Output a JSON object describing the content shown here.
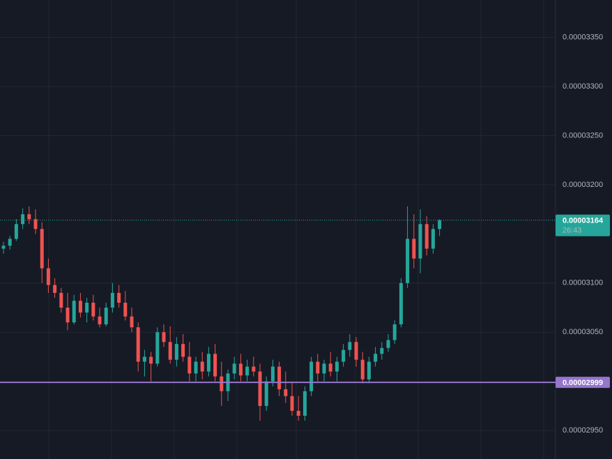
{
  "chart_data": {
    "type": "candlestick",
    "ylim": [
      2.921e-05,
      3.388e-05
    ],
    "yticks": [
      {
        "value": 3.35e-05,
        "label": "0.00003350"
      },
      {
        "value": 3.3e-05,
        "label": "0.00003300"
      },
      {
        "value": 3.25e-05,
        "label": "0.00003250"
      },
      {
        "value": 3.2e-05,
        "label": "0.00003200"
      },
      {
        "value": 3.1e-05,
        "label": "0.00003100"
      },
      {
        "value": 3.05e-05,
        "label": "0.00003050"
      },
      {
        "value": 2.95e-05,
        "label": "0.00002950"
      }
    ],
    "grid": true,
    "up_color": "#26a69a",
    "down_color": "#ef5350",
    "last_price": 3.164e-05,
    "last_price_color": "#26a69a",
    "countdown": "26:43",
    "alert_price": 2.999e-05,
    "alert_color": "#9575cd",
    "open": [
      3.135e-05,
      3.138e-05,
      3.145e-05,
      3.16e-05,
      3.17e-05,
      3.165e-05,
      3.155e-05,
      3.115e-05,
      3.098e-05,
      3.09e-05,
      3.075e-05,
      3.06e-05,
      3.082e-05,
      3.07e-05,
      3.08e-05,
      3.066e-05,
      3.058e-05,
      3.075e-05,
      3.09e-05,
      3.08e-05,
      3.066e-05,
      3.055e-05,
      3.02e-05,
      3.025e-05,
      3.018e-05,
      3.05e-05,
      3.04e-05,
      3.022e-05,
      3.038e-05,
      3.025e-05,
      3.008e-05,
      3.02e-05,
      3.01e-05,
      3.028e-05,
      3.005e-05,
      2.99e-05,
      3.008e-05,
      3.018e-05,
      3.006e-05,
      3.015e-05,
      3.01e-05,
      2.975e-05,
      3e-05,
      3.015e-05,
      2.992e-05,
      2.985e-05,
      2.97e-05,
      2.965e-05,
      2.99e-05,
      3.02e-05,
      3.008e-05,
      3.018e-05,
      3.01e-05,
      3.02e-05,
      3.032e-05,
      3.04e-05,
      3.022e-05,
      3.002e-05,
      3.02e-05,
      3.028e-05,
      3.034e-05,
      3.042e-05,
      3.058e-05,
      3.1e-05,
      3.145e-05,
      3.125e-05,
      3.16e-05,
      3.135e-05,
      3.155e-05
    ],
    "high": [
      3.142e-05,
      3.148e-05,
      3.165e-05,
      3.176e-05,
      3.178e-05,
      3.175e-05,
      3.162e-05,
      3.125e-05,
      3.105e-05,
      3.095e-05,
      3.09e-05,
      3.088e-05,
      3.09e-05,
      3.085e-05,
      3.088e-05,
      3.075e-05,
      3.08e-05,
      3.1e-05,
      3.098e-05,
      3.092e-05,
      3.075e-05,
      3.06e-05,
      3.032e-05,
      3.03e-05,
      3.055e-05,
      3.058e-05,
      3.056e-05,
      3.045e-05,
      3.048e-05,
      3.04e-05,
      3.025e-05,
      3.03e-05,
      3.035e-05,
      3.038e-05,
      3.02e-05,
      3.012e-05,
      3.025e-05,
      3.028e-05,
      3.022e-05,
      3.025e-05,
      3.018e-05,
      3.005e-05,
      3.022e-05,
      3.02e-05,
      3.01e-05,
      3e-05,
      2.985e-05,
      2.995e-05,
      3.025e-05,
      3.028e-05,
      3.022e-05,
      3.03e-05,
      3.025e-05,
      3.038e-05,
      3.048e-05,
      3.045e-05,
      3.03e-05,
      3.025e-05,
      3.035e-05,
      3.04e-05,
      3.048e-05,
      3.062e-05,
      3.105e-05,
      3.178e-05,
      3.17e-05,
      3.175e-05,
      3.168e-05,
      3.16e-05,
      3.165e-05
    ],
    "low": [
      3.13e-05,
      3.134e-05,
      3.143e-05,
      3.155e-05,
      3.16e-05,
      3.15e-05,
      3.1e-05,
      3.09e-05,
      3.085e-05,
      3.07e-05,
      3.052e-05,
      3.058e-05,
      3.065e-05,
      3.06e-05,
      3.062e-05,
      3.055e-05,
      3.056e-05,
      3.07e-05,
      3.075e-05,
      3.062e-05,
      3.05e-05,
      3.01e-05,
      3.005e-05,
      3e-05,
      3.015e-05,
      3.035e-05,
      3.018e-05,
      3.015e-05,
      3.02e-05,
      3e-05,
      3e-05,
      3.002e-05,
      3.005e-05,
      3e-05,
      2.975e-05,
      2.98e-05,
      3.002e-05,
      3e-05,
      3e-05,
      3.005e-05,
      2.96e-05,
      2.97e-05,
      2.995e-05,
      2.985e-05,
      2.978e-05,
      2.965e-05,
      2.96e-05,
      2.96e-05,
      2.985e-05,
      3e-05,
      3e-05,
      3.005e-05,
      3e-05,
      3.015e-05,
      3.025e-05,
      3.015e-05,
      2.998e-05,
      2.998e-05,
      3.015e-05,
      3.022e-05,
      3.03e-05,
      3.038e-05,
      3.055e-05,
      3.095e-05,
      3.115e-05,
      3.11e-05,
      3.128e-05,
      3.13e-05,
      3.148e-05
    ],
    "close": [
      3.138e-05,
      3.145e-05,
      3.16e-05,
      3.17e-05,
      3.165e-05,
      3.155e-05,
      3.115e-05,
      3.098e-05,
      3.09e-05,
      3.075e-05,
      3.06e-05,
      3.082e-05,
      3.07e-05,
      3.08e-05,
      3.066e-05,
      3.058e-05,
      3.075e-05,
      3.09e-05,
      3.08e-05,
      3.066e-05,
      3.055e-05,
      3.02e-05,
      3.025e-05,
      3.018e-05,
      3.05e-05,
      3.04e-05,
      3.022e-05,
      3.038e-05,
      3.025e-05,
      3.008e-05,
      3.02e-05,
      3.01e-05,
      3.028e-05,
      3.005e-05,
      2.99e-05,
      3.008e-05,
      3.018e-05,
      3.006e-05,
      3.015e-05,
      3.01e-05,
      2.975e-05,
      3e-05,
      3.015e-05,
      2.992e-05,
      2.985e-05,
      2.97e-05,
      2.965e-05,
      2.99e-05,
      3.02e-05,
      3.008e-05,
      3.018e-05,
      3.01e-05,
      3.02e-05,
      3.032e-05,
      3.04e-05,
      3.022e-05,
      3.002e-05,
      3.02e-05,
      3.028e-05,
      3.034e-05,
      3.042e-05,
      3.058e-05,
      3.1e-05,
      3.145e-05,
      3.125e-05,
      3.16e-05,
      3.135e-05,
      3.155e-05,
      3.164e-05
    ]
  }
}
